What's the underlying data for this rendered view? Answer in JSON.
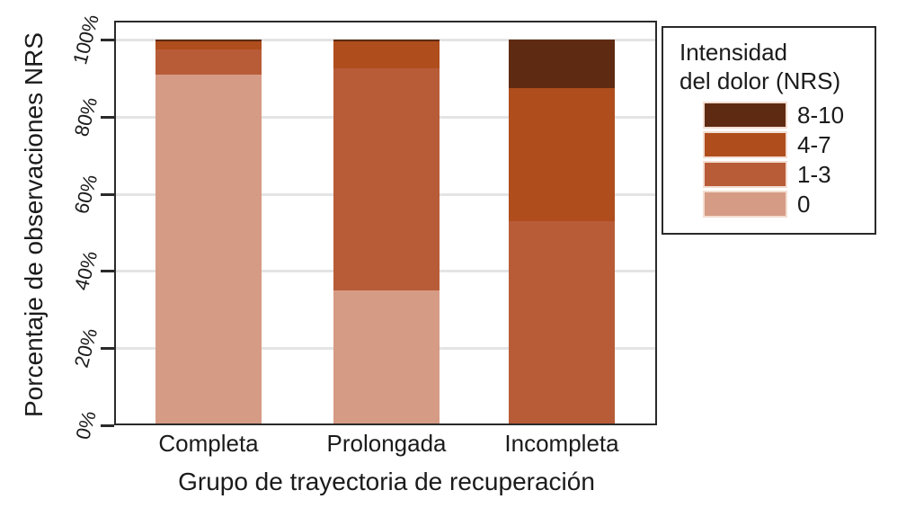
{
  "chart_data": {
    "type": "bar",
    "stacking": "percent",
    "xlabel": "Grupo de trayectoria de recuperación",
    "ylabel": "Porcentaje de observaciones NRS",
    "categories": [
      "Completa",
      "Prolongada",
      "Incompleta"
    ],
    "series": [
      {
        "name": "0",
        "color": "#d69b85",
        "values": [
          91.0,
          35.0,
          0.0
        ]
      },
      {
        "name": "1-3",
        "color": "#b85c38",
        "values": [
          6.5,
          57.5,
          53.0
        ]
      },
      {
        "name": "4-7",
        "color": "#af4d1c",
        "values": [
          2.0,
          7.0,
          34.5
        ]
      },
      {
        "name": "8-10",
        "color": "#5f2a12",
        "values": [
          0.5,
          0.5,
          12.5
        ]
      }
    ],
    "ylim": [
      0,
      100
    ],
    "y_ticks": [
      0,
      20,
      40,
      60,
      80,
      100
    ],
    "y_tick_labels": [
      "0%",
      "20%",
      "40%",
      "60%",
      "80%",
      "100%"
    ],
    "grid": "horizontal",
    "gridline_color": "#e4e4e4",
    "axis_color": "#2a2a2a",
    "legend": {
      "position": "right",
      "title_lines": [
        "Intensidad",
        "del dolor (NRS)"
      ],
      "entries": [
        {
          "label": "8-10",
          "color": "#5f2a12"
        },
        {
          "label": "4-7",
          "color": "#af4d1c"
        },
        {
          "label": "1-3",
          "color": "#b85c38"
        },
        {
          "label": "0",
          "color": "#d69b85"
        }
      ]
    }
  }
}
